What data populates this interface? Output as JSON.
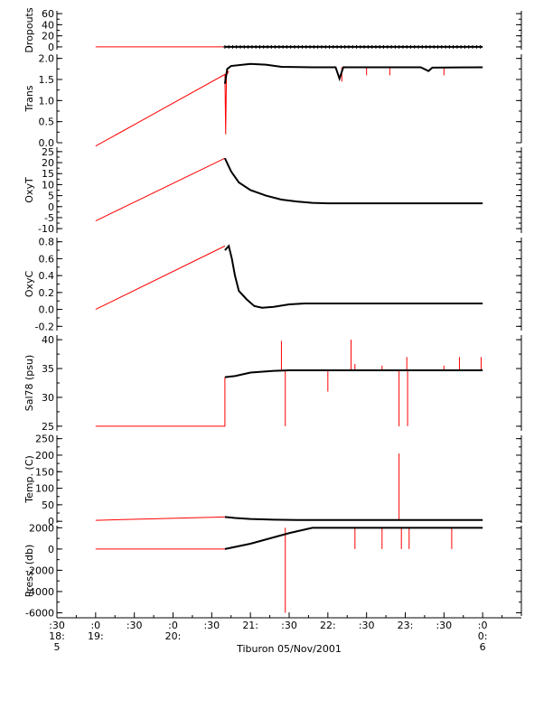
{
  "chart_data": {
    "type": "line",
    "colors": {
      "black": "#000000",
      "red": "#ff0000",
      "axis": "#000000"
    },
    "time_axis": {
      "tick_hours": [
        18.5,
        19.0,
        19.5,
        20.0,
        20.5,
        21.0,
        21.5,
        22.0,
        22.5,
        23.0,
        23.5,
        24.0
      ],
      "row1": [
        ":30",
        ":0",
        ":30",
        ":0",
        ":30",
        "21:",
        ":30",
        "22:",
        ":30",
        "23:",
        ":30",
        ":0"
      ],
      "row2": [
        "18:",
        "19:",
        "",
        "20:",
        "",
        "",
        "",
        "",
        "",
        "",
        "",
        "0:"
      ],
      "row3": [
        "5",
        "",
        "",
        "",
        "",
        "",
        "",
        "",
        "",
        "",
        "",
        "6"
      ],
      "label": "Tiburon 05/Nov/2001",
      "range": [
        18.5,
        24.5
      ]
    },
    "panels": [
      {
        "ylabel": "Dropouts",
        "ylim": [
          -5,
          65
        ],
        "ticks": [
          0,
          20,
          40,
          60
        ],
        "tick_labels": [
          "0",
          "20",
          "40",
          "60"
        ],
        "red": [
          [
            19.0,
            0
          ],
          [
            20.67,
            0
          ]
        ],
        "black": [
          [
            20.67,
            0
          ],
          [
            21.0,
            0
          ],
          [
            22.0,
            0
          ],
          [
            23.0,
            0
          ],
          [
            24.0,
            0
          ]
        ],
        "black_markers": "plus"
      },
      {
        "ylabel": "Trans",
        "ylim": [
          0,
          2.1
        ],
        "ticks": [
          0,
          0.5,
          1.0,
          1.5,
          2.0
        ],
        "tick_labels": [
          "0.0",
          "0.5",
          "1.0",
          "1.5",
          "2.0"
        ],
        "red": [
          [
            19.0,
            -0.08
          ],
          [
            20.67,
            1.62
          ],
          [
            20.68,
            0.2
          ],
          [
            20.69,
            1.6
          ],
          [
            20.72,
            1.7
          ]
        ],
        "black": [
          [
            20.67,
            1.4
          ],
          [
            20.7,
            1.75
          ],
          [
            20.75,
            1.82
          ],
          [
            21.0,
            1.87
          ],
          [
            21.2,
            1.85
          ],
          [
            21.4,
            1.8
          ],
          [
            21.8,
            1.79
          ],
          [
            22.1,
            1.79
          ],
          [
            22.15,
            1.52
          ],
          [
            22.2,
            1.79
          ],
          [
            22.8,
            1.79
          ],
          [
            23.2,
            1.79
          ],
          [
            23.3,
            1.7
          ],
          [
            23.35,
            1.78
          ],
          [
            24.0,
            1.79
          ]
        ],
        "red_spikes": [
          [
            22.18,
            1.45
          ],
          [
            22.5,
            1.6
          ],
          [
            22.8,
            1.6
          ],
          [
            23.5,
            1.6
          ]
        ]
      },
      {
        "ylabel": "OxyT",
        "ylim": [
          -12,
          27
        ],
        "ticks": [
          -10,
          -5,
          0,
          5,
          10,
          15,
          20,
          25
        ],
        "tick_labels": [
          "-10",
          "-5",
          "0",
          "5",
          "10",
          "15",
          "20",
          "25"
        ],
        "red": [
          [
            19.0,
            -6.5
          ],
          [
            20.67,
            22
          ]
        ],
        "black": [
          [
            20.67,
            22
          ],
          [
            20.75,
            16
          ],
          [
            20.85,
            11
          ],
          [
            21.0,
            7.5
          ],
          [
            21.2,
            5.0
          ],
          [
            21.4,
            3.2
          ],
          [
            21.6,
            2.3
          ],
          [
            21.8,
            1.7
          ],
          [
            22.0,
            1.5
          ],
          [
            24.0,
            1.5
          ]
        ]
      },
      {
        "ylabel": "OxyC",
        "ylim": [
          -0.25,
          0.85
        ],
        "ticks": [
          -0.2,
          0.0,
          0.2,
          0.4,
          0.6,
          0.8
        ],
        "tick_labels": [
          "-0.2",
          "0.0",
          "0.2",
          "0.4",
          "0.6",
          "0.8"
        ],
        "red": [
          [
            19.0,
            0.0
          ],
          [
            20.67,
            0.75
          ]
        ],
        "black": [
          [
            20.67,
            0.7
          ],
          [
            20.72,
            0.75
          ],
          [
            20.76,
            0.6
          ],
          [
            20.8,
            0.4
          ],
          [
            20.85,
            0.22
          ],
          [
            20.95,
            0.12
          ],
          [
            21.05,
            0.04
          ],
          [
            21.15,
            0.02
          ],
          [
            21.3,
            0.03
          ],
          [
            21.5,
            0.06
          ],
          [
            21.7,
            0.07
          ],
          [
            22.0,
            0.07
          ],
          [
            24.0,
            0.07
          ]
        ]
      },
      {
        "ylabel": "Sal78 (psu)",
        "ylim": [
          24.2,
          40.8
        ],
        "ticks": [
          25,
          30,
          35,
          40
        ],
        "tick_labels": [
          "25",
          "30",
          "35",
          "40"
        ],
        "red": [
          [
            19.0,
            25.0
          ],
          [
            20.67,
            25.0
          ],
          [
            20.67,
            33.5
          ]
        ],
        "black": [
          [
            20.67,
            33.5
          ],
          [
            20.8,
            33.7
          ],
          [
            21.0,
            34.3
          ],
          [
            21.3,
            34.6
          ],
          [
            21.5,
            34.7
          ],
          [
            24.0,
            34.7
          ]
        ],
        "red_spikes": [
          [
            21.4,
            39.8
          ],
          [
            21.45,
            25.0
          ],
          [
            22.0,
            31.0
          ],
          [
            22.3,
            40.0
          ],
          [
            22.35,
            35.8
          ],
          [
            22.7,
            35.5
          ],
          [
            22.9,
            34.5
          ],
          [
            22.92,
            25.0
          ],
          [
            23.02,
            37.0
          ],
          [
            23.03,
            25.0
          ],
          [
            23.5,
            35.5
          ],
          [
            23.7,
            37.0
          ],
          [
            23.98,
            37.0
          ]
        ]
      },
      {
        "ylabel": "Temp. (C)",
        "ylim": [
          -5,
          260
        ],
        "ticks": [
          0,
          50,
          100,
          150,
          200,
          250
        ],
        "tick_labels": [
          "0",
          "50",
          "100",
          "150",
          "200",
          "250"
        ],
        "red": [
          [
            19.0,
            3
          ],
          [
            20.67,
            13
          ]
        ],
        "black": [
          [
            20.67,
            13
          ],
          [
            20.8,
            10
          ],
          [
            21.0,
            7
          ],
          [
            21.3,
            5
          ],
          [
            21.6,
            4
          ],
          [
            24.0,
            4
          ]
        ],
        "red_spikes": [
          [
            22.92,
            205
          ]
        ]
      },
      {
        "ylabel": "Press. (db)",
        "ylim": [
          -6300,
          2200
        ],
        "ticks": [
          -6000,
          -4000,
          -2000,
          0,
          2000
        ],
        "tick_labels": [
          "-6000",
          "-4000",
          "-2000",
          "0",
          "2000"
        ],
        "red": [
          [
            19.0,
            0
          ],
          [
            20.67,
            0
          ]
        ],
        "black": [
          [
            20.67,
            0
          ],
          [
            21.0,
            500
          ],
          [
            21.5,
            1500
          ],
          [
            21.8,
            2000
          ],
          [
            22.0,
            2000
          ],
          [
            24.0,
            2000
          ]
        ],
        "red_spikes": [
          [
            21.45,
            -6000
          ],
          [
            22.35,
            0
          ],
          [
            22.7,
            0
          ],
          [
            22.95,
            0
          ],
          [
            23.05,
            0
          ],
          [
            23.6,
            0
          ]
        ]
      }
    ]
  }
}
